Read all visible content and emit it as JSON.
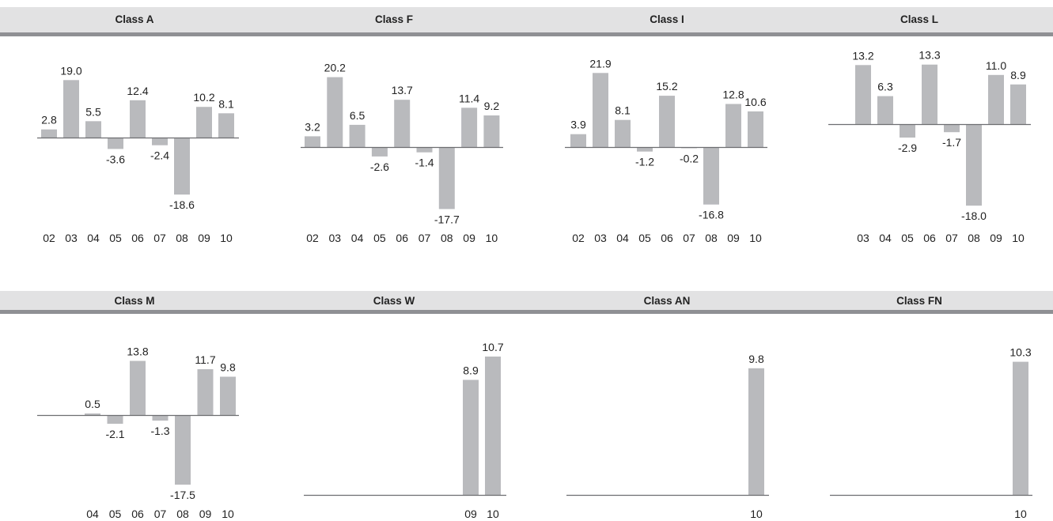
{
  "colors": {
    "header_band": "#e2e2e3",
    "header_rule": "#8f9094",
    "bar": "#b9babd",
    "baseline": "#6d6e71",
    "text": "#222222"
  },
  "chart_data": [
    {
      "type": "bar",
      "title": "Class A",
      "categories": [
        "02",
        "03",
        "04",
        "05",
        "06",
        "07",
        "08",
        "09",
        "10"
      ],
      "values": [
        2.8,
        19.0,
        5.5,
        -3.6,
        12.4,
        -2.4,
        -18.6,
        10.2,
        8.1
      ],
      "labels": [
        "2.8",
        "19.0",
        "5.5",
        "-3.6",
        "12.4",
        "-2.4",
        "-18.6",
        "10.2",
        "8.1"
      ]
    },
    {
      "type": "bar",
      "title": "Class F",
      "categories": [
        "02",
        "03",
        "04",
        "05",
        "06",
        "07",
        "08",
        "09",
        "10"
      ],
      "values": [
        3.2,
        20.2,
        6.5,
        -2.6,
        13.7,
        -1.4,
        -17.7,
        11.4,
        9.2
      ],
      "labels": [
        "3.2",
        "20.2",
        "6.5",
        "-2.6",
        "13.7",
        "-1.4",
        "-17.7",
        "11.4",
        "9.2"
      ]
    },
    {
      "type": "bar",
      "title": "Class I",
      "categories": [
        "02",
        "03",
        "04",
        "05",
        "06",
        "07",
        "08",
        "09",
        "10"
      ],
      "values": [
        3.9,
        21.9,
        8.1,
        -1.2,
        15.2,
        -0.2,
        -16.8,
        12.8,
        10.6
      ],
      "labels": [
        "3.9",
        "21.9",
        "8.1",
        "-1.2",
        "15.2",
        "-0.2",
        "-16.8",
        "12.8",
        "10.6"
      ]
    },
    {
      "type": "bar",
      "title": "Class L",
      "categories": [
        "03",
        "04",
        "05",
        "06",
        "07",
        "08",
        "09",
        "10"
      ],
      "values": [
        13.2,
        6.3,
        -2.9,
        13.3,
        -1.7,
        -18.0,
        11.0,
        8.9
      ],
      "labels": [
        "13.2",
        "6.3",
        "-2.9",
        "13.3",
        "-1.7",
        "-18.0",
        "11.0",
        "8.9"
      ]
    },
    {
      "type": "bar",
      "title": "Class M",
      "categories": [
        "04",
        "05",
        "06",
        "07",
        "08",
        "09",
        "10"
      ],
      "values": [
        0.5,
        -2.1,
        13.8,
        -1.3,
        -17.5,
        11.7,
        9.8
      ],
      "labels": [
        "0.5",
        "-2.1",
        "13.8",
        "-1.3",
        "-17.5",
        "11.7",
        "9.8"
      ]
    },
    {
      "type": "bar",
      "title": "Class W",
      "categories": [
        "09",
        "10"
      ],
      "values": [
        8.9,
        10.7
      ],
      "labels": [
        "8.9",
        "10.7"
      ]
    },
    {
      "type": "bar",
      "title": "Class AN",
      "categories": [
        "10"
      ],
      "values": [
        9.8
      ],
      "labels": [
        "9.8"
      ]
    },
    {
      "type": "bar",
      "title": "Class FN",
      "categories": [
        "10"
      ],
      "values": [
        10.3
      ],
      "labels": [
        "10.3"
      ]
    }
  ]
}
